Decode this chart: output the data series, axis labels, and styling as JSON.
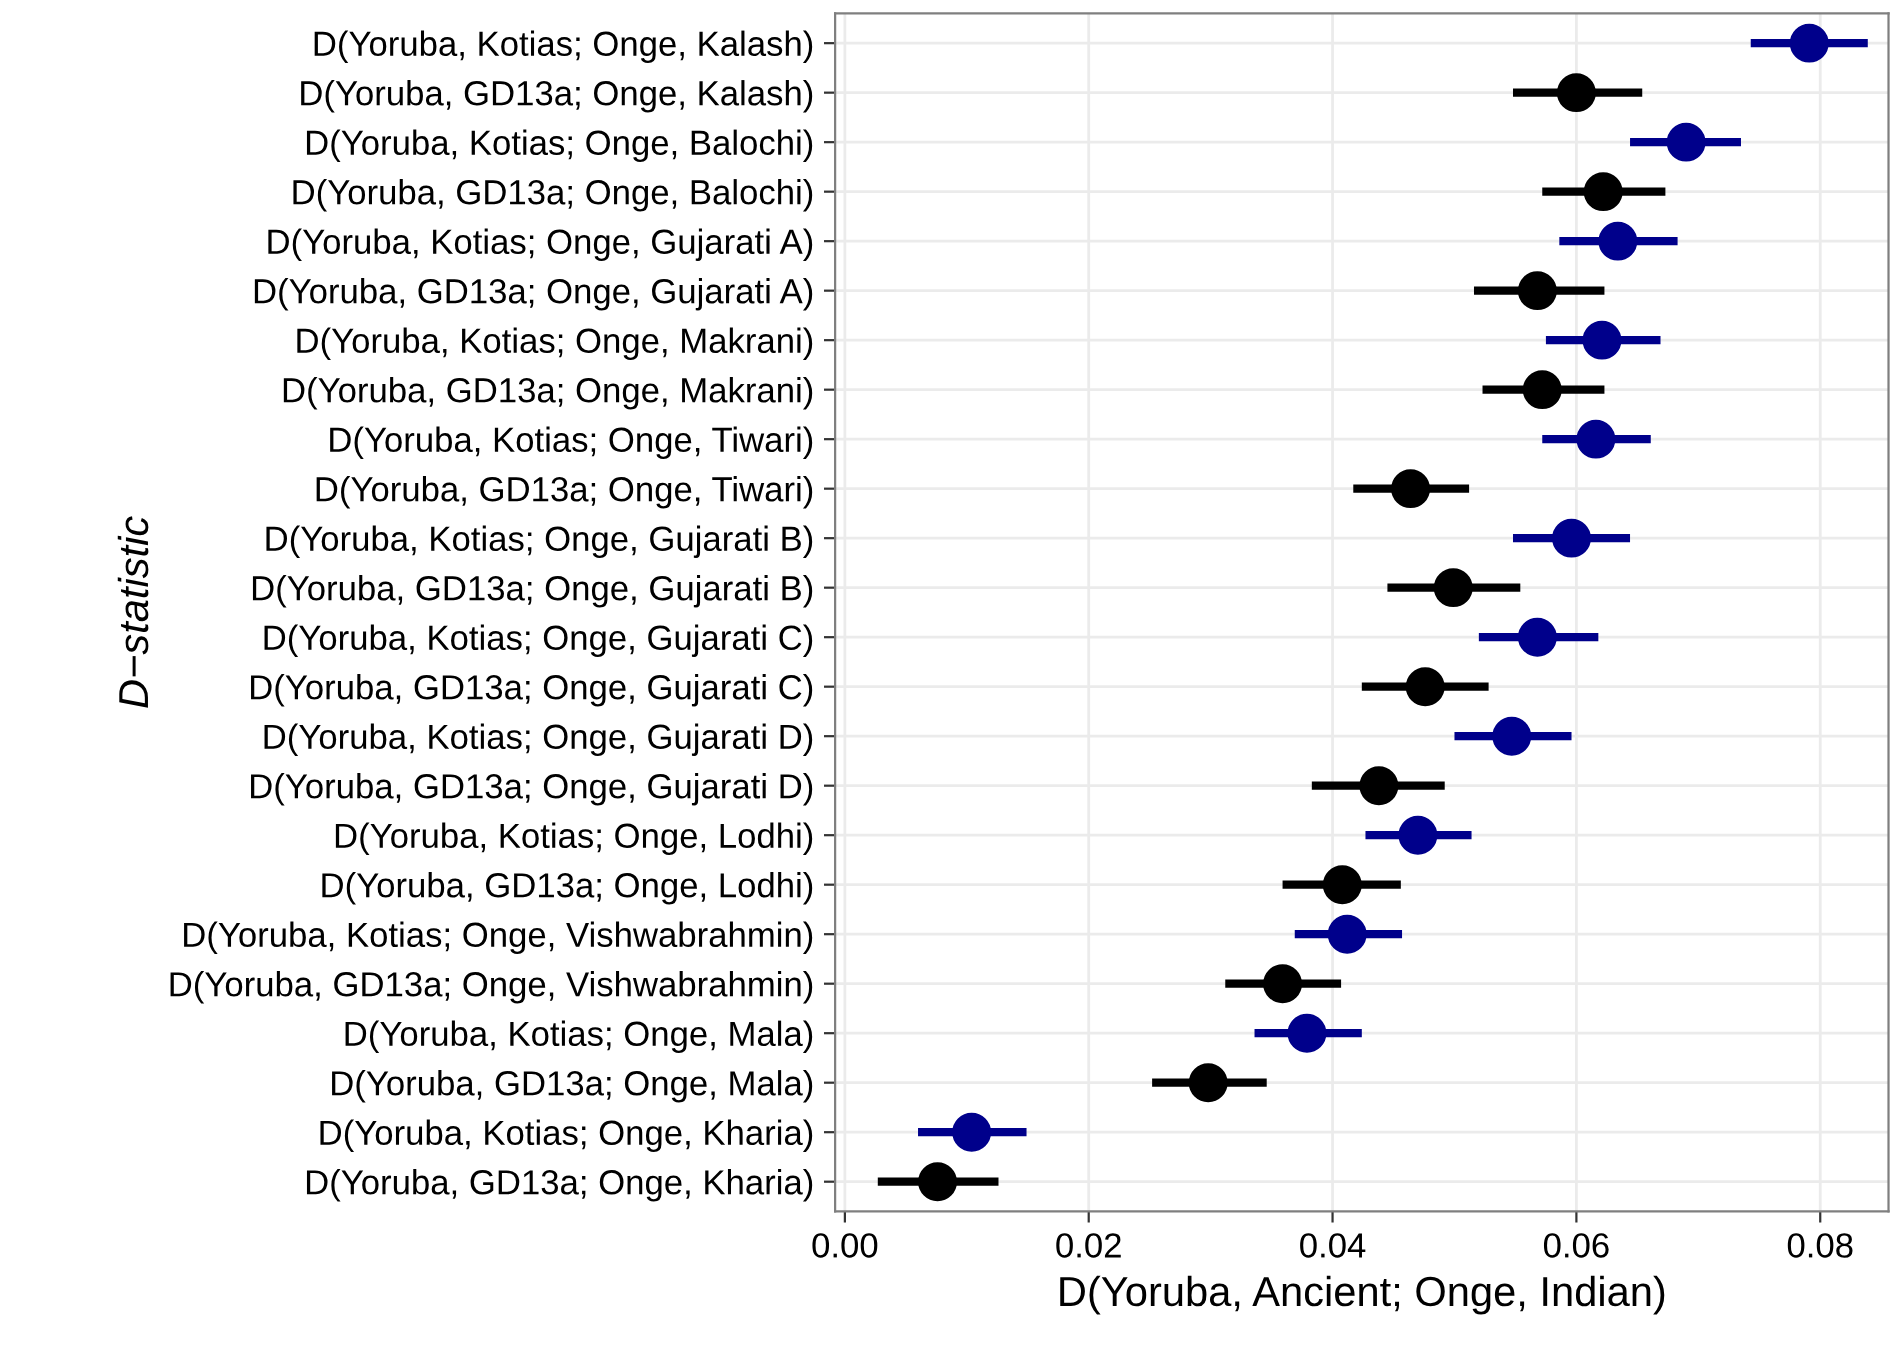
{
  "chart_data": {
    "type": "scatter",
    "orientation": "horizontal",
    "xlabel": "D(Yoruba, Ancient; Onge, Indian)",
    "ylabel": "D−statistic",
    "categories": [
      "D(Yoruba, Kotias; Onge, Kalash)",
      "D(Yoruba, GD13a; Onge, Kalash)",
      "D(Yoruba, Kotias; Onge, Balochi)",
      "D(Yoruba, GD13a; Onge, Balochi)",
      "D(Yoruba, Kotias; Onge, Gujarati A)",
      "D(Yoruba, GD13a; Onge, Gujarati A)",
      "D(Yoruba, Kotias; Onge, Makrani)",
      "D(Yoruba, GD13a; Onge, Makrani)",
      "D(Yoruba, Kotias; Onge, Tiwari)",
      "D(Yoruba, GD13a; Onge, Tiwari)",
      "D(Yoruba, Kotias; Onge, Gujarati B)",
      "D(Yoruba, GD13a; Onge, Gujarati B)",
      "D(Yoruba, Kotias; Onge, Gujarati C)",
      "D(Yoruba, GD13a; Onge, Gujarati C)",
      "D(Yoruba, Kotias; Onge, Gujarati D)",
      "D(Yoruba, GD13a; Onge, Gujarati D)",
      "D(Yoruba, Kotias; Onge, Lodhi)",
      "D(Yoruba, GD13a; Onge, Lodhi)",
      "D(Yoruba, Kotias; Onge, Vishwabrahmin)",
      "D(Yoruba, GD13a; Onge, Vishwabrahmin)",
      "D(Yoruba, Kotias; Onge, Mala)",
      "D(Yoruba, GD13a; Onge, Mala)",
      "D(Yoruba, Kotias; Onge, Kharia)",
      "D(Yoruba, GD13a; Onge, Kharia)"
    ],
    "values": [
      0.0791,
      0.06,
      0.069,
      0.0622,
      0.0634,
      0.0568,
      0.0621,
      0.0572,
      0.0616,
      0.0464,
      0.0596,
      0.0499,
      0.0568,
      0.0476,
      0.0547,
      0.0438,
      0.047,
      0.0408,
      0.0412,
      0.0359,
      0.0379,
      0.0298,
      0.0104,
      0.0076
    ],
    "errors": [
      [
        0.0743,
        0.0839
      ],
      [
        0.0548,
        0.0654
      ],
      [
        0.0644,
        0.0735
      ],
      [
        0.0572,
        0.0673
      ],
      [
        0.0586,
        0.0683
      ],
      [
        0.0516,
        0.0623
      ],
      [
        0.0575,
        0.0669
      ],
      [
        0.0523,
        0.0623
      ],
      [
        0.0572,
        0.0661
      ],
      [
        0.0417,
        0.0512
      ],
      [
        0.0548,
        0.0644
      ],
      [
        0.0445,
        0.0554
      ],
      [
        0.052,
        0.0618
      ],
      [
        0.0424,
        0.0528
      ],
      [
        0.05,
        0.0596
      ],
      [
        0.0383,
        0.0492
      ],
      [
        0.0427,
        0.0514
      ],
      [
        0.0359,
        0.0456
      ],
      [
        0.0369,
        0.0457
      ],
      [
        0.0312,
        0.0407
      ],
      [
        0.0336,
        0.0424
      ],
      [
        0.0252,
        0.0346
      ],
      [
        0.006,
        0.0149
      ],
      [
        0.0027,
        0.0126
      ]
    ],
    "colors": [
      "#00008b",
      "#000000",
      "#00008b",
      "#000000",
      "#00008b",
      "#000000",
      "#00008b",
      "#000000",
      "#00008b",
      "#000000",
      "#00008b",
      "#000000",
      "#00008b",
      "#000000",
      "#00008b",
      "#000000",
      "#00008b",
      "#000000",
      "#00008b",
      "#000000",
      "#00008b",
      "#000000",
      "#00008b",
      "#000000"
    ],
    "xlim": [
      -0.0008,
      0.0856
    ],
    "xticks": [
      {
        "value": 0,
        "label": "0.00"
      },
      {
        "value": 0.02,
        "label": "0.02"
      },
      {
        "value": 0.04,
        "label": "0.04"
      },
      {
        "value": 0.06,
        "label": "0.06"
      },
      {
        "value": 0.08,
        "label": "0.08"
      }
    ],
    "grid": true,
    "marker": "circle"
  }
}
